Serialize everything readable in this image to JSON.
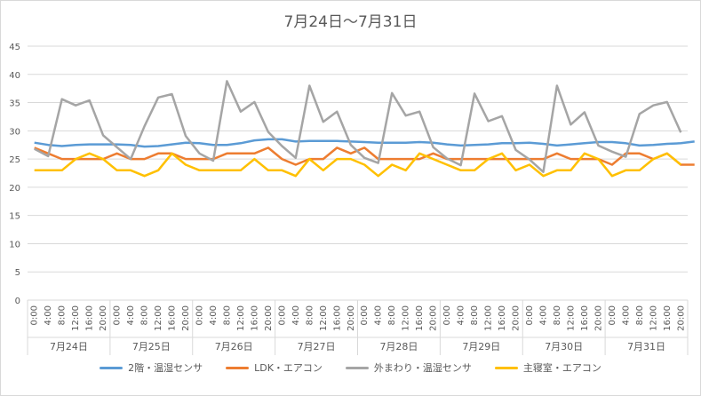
{
  "chart_data": {
    "type": "line",
    "title": "7月24日～7月31日",
    "ylim": [
      0,
      45
    ],
    "yticks": [
      0,
      5,
      10,
      15,
      20,
      25,
      30,
      35,
      40,
      45
    ],
    "grid": true,
    "legend_position": "bottom",
    "hour_labels": [
      "0:00",
      "4:00",
      "8:00",
      "12:00",
      "16:00",
      "20:00"
    ],
    "days": [
      "7月24日",
      "7月25日",
      "7月26日",
      "7月27日",
      "7月28日",
      "7月29日",
      "7月30日",
      "7月31日"
    ],
    "series": [
      {
        "name": "2階・温湿センサ",
        "color": "#5B9BD5",
        "values": [
          27.9,
          27.5,
          27.3,
          27.5,
          27.6,
          27.6,
          27.6,
          27.5,
          27.2,
          27.3,
          27.6,
          27.9,
          27.8,
          27.5,
          27.5,
          27.8,
          28.3,
          28.5,
          28.5,
          28.1,
          28.2,
          28.2,
          28.2,
          28.1,
          28.0,
          27.9,
          27.9,
          27.9,
          28.0,
          27.9,
          27.6,
          27.4,
          27.5,
          27.6,
          27.8,
          27.8,
          27.9,
          27.7,
          27.4,
          27.6,
          27.8,
          28.0,
          28.0,
          27.8,
          27.4,
          27.5,
          27.7,
          27.8,
          28.1
        ]
      },
      {
        "name": "LDK・エアコン",
        "color": "#ED7D31",
        "values": [
          27,
          26,
          25,
          25,
          25,
          25,
          26,
          25,
          25,
          26,
          26,
          25,
          25,
          25,
          26,
          26,
          26,
          27,
          25,
          24,
          25,
          25,
          27,
          26,
          27,
          25,
          25,
          25,
          25,
          26,
          25,
          25,
          25,
          25,
          25,
          25,
          25,
          25,
          26,
          25,
          25,
          25,
          24,
          26,
          26,
          25,
          26,
          24,
          24
        ]
      },
      {
        "name": "外まわり・温湿センサ",
        "color": "#A5A5A5",
        "values": [
          26.8,
          25.5,
          35.6,
          34.5,
          35.4,
          29.2,
          27.1,
          25.0,
          30.8,
          35.9,
          36.5,
          29.1,
          26.0,
          24.7,
          38.8,
          33.4,
          35.1,
          29.8,
          27.3,
          25.2,
          38.0,
          31.6,
          33.4,
          27.5,
          25.2,
          24.3,
          36.7,
          32.7,
          33.4,
          27.1,
          25.1,
          23.9,
          36.6,
          31.7,
          32.6,
          26.6,
          24.9,
          22.7,
          38.0,
          31.1,
          33.3,
          27.4,
          26.3,
          25.4,
          33.0,
          34.5,
          35.1,
          29.7
        ]
      },
      {
        "name": "主寝室・エアコン",
        "color": "#FFC000",
        "values": [
          23,
          23,
          23,
          25,
          26,
          25,
          23,
          23,
          22,
          23,
          26,
          24,
          23,
          23,
          23,
          23,
          25,
          23,
          23,
          22,
          25,
          23,
          25,
          25,
          24,
          22,
          24,
          23,
          26,
          25,
          24,
          23,
          23,
          25,
          26,
          23,
          24,
          22,
          23,
          23,
          26,
          25,
          22,
          23,
          23,
          25,
          26,
          24
        ]
      }
    ]
  }
}
